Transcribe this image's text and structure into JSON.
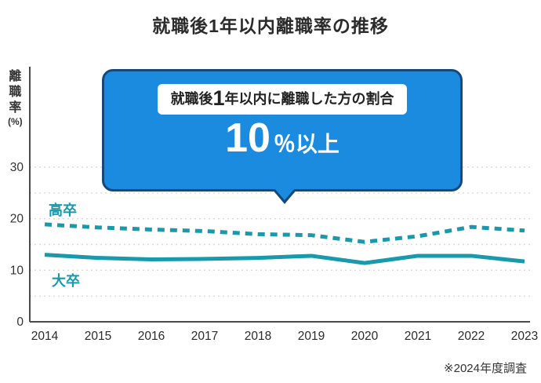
{
  "title": "就職後1年以内離職率の推移",
  "y_axis": {
    "label_chars": [
      "離",
      "職",
      "率"
    ],
    "unit": "(%)"
  },
  "callout": {
    "heading_prefix": "就職後",
    "heading_big": "1",
    "heading_suffix": "年以内に離職した方の割合",
    "value_big": "10",
    "value_suffix": "％以上"
  },
  "footnote": "※2024年度調査",
  "colors": {
    "teal": "#1899AC",
    "blue": "#1B8BE0",
    "callout_border": "#15487C",
    "axis": "#4a4a4a",
    "grid": "#d9d9d9",
    "text": "#333333"
  },
  "chart_data": {
    "type": "line",
    "x": [
      "2014",
      "2015",
      "2016",
      "2017",
      "2018",
      "2019",
      "2020",
      "2021",
      "2022",
      "2023"
    ],
    "series": [
      {
        "name": "高卒",
        "style": "dashed",
        "values": [
          18.9,
          18.3,
          17.9,
          17.6,
          17.0,
          16.8,
          15.5,
          16.6,
          18.4,
          17.7
        ]
      },
      {
        "name": "大卒",
        "style": "solid",
        "values": [
          13.0,
          12.4,
          12.1,
          12.2,
          12.4,
          12.8,
          11.4,
          12.8,
          12.8,
          11.7
        ]
      }
    ],
    "ylabel": "離職率(%)",
    "ylim": [
      0,
      35
    ],
    "yticks": [
      0,
      10,
      20,
      30
    ],
    "gridlines": [
      5,
      10,
      15,
      20,
      25,
      30
    ],
    "grid": true,
    "legend_position": "on-chart",
    "annotation": "就職後1年以内に離職した方の割合 10％以上"
  }
}
